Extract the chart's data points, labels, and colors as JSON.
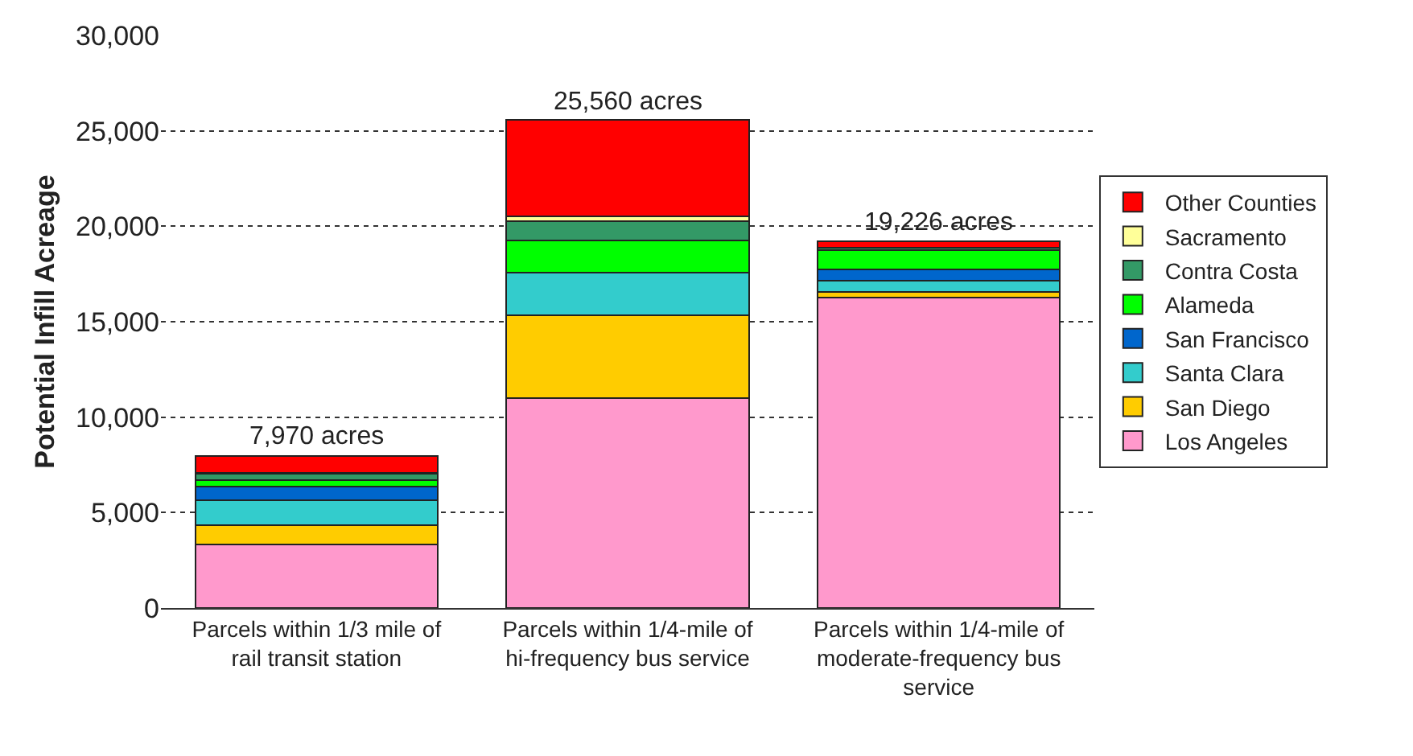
{
  "chart_data": {
    "type": "bar",
    "stacked": true,
    "ylabel": "Potential Infill Acreage",
    "categories": [
      "Parcels within 1/3 mile of rail transit station",
      "Parcels within 1/4-mile of hi-frequency bus service",
      "Parcels within 1/4-mile of moderate-frequency bus service"
    ],
    "series": [
      {
        "name": "Los Angeles",
        "color": "#ff99cc",
        "values": [
          3350,
          11000,
          16260
        ]
      },
      {
        "name": "San Diego",
        "color": "#ffcc00",
        "values": [
          970,
          4330,
          280
        ]
      },
      {
        "name": "Santa Clara",
        "color": "#33cccc",
        "values": [
          1320,
          2250,
          620
        ]
      },
      {
        "name": "San Francisco",
        "color": "#0066cc",
        "values": [
          740,
          0,
          590
        ]
      },
      {
        "name": "Alameda",
        "color": "#00ff00",
        "values": [
          330,
          1690,
          1010
        ]
      },
      {
        "name": "Contra Costa",
        "color": "#339966",
        "values": [
          340,
          1010,
          110
        ]
      },
      {
        "name": "Sacramento",
        "color": "#ffff99",
        "values": [
          50,
          220,
          0
        ]
      },
      {
        "name": "Other Counties",
        "color": "#ff0000",
        "values": [
          870,
          5060,
          356
        ]
      }
    ],
    "totals": [
      "7,970 acres",
      "25,560 acres",
      "19,226 acres"
    ],
    "ylim": [
      0,
      30000
    ],
    "yticks": [
      {
        "value": 0,
        "label": "0"
      },
      {
        "value": 5000,
        "label": "5,000"
      },
      {
        "value": 10000,
        "label": "10,000"
      },
      {
        "value": 15000,
        "label": "15,000"
      },
      {
        "value": 20000,
        "label": "20,000"
      },
      {
        "value": 25000,
        "label": "25,000"
      },
      {
        "value": 30000,
        "label": "30,000"
      }
    ],
    "grid": "y",
    "legend": "right"
  }
}
